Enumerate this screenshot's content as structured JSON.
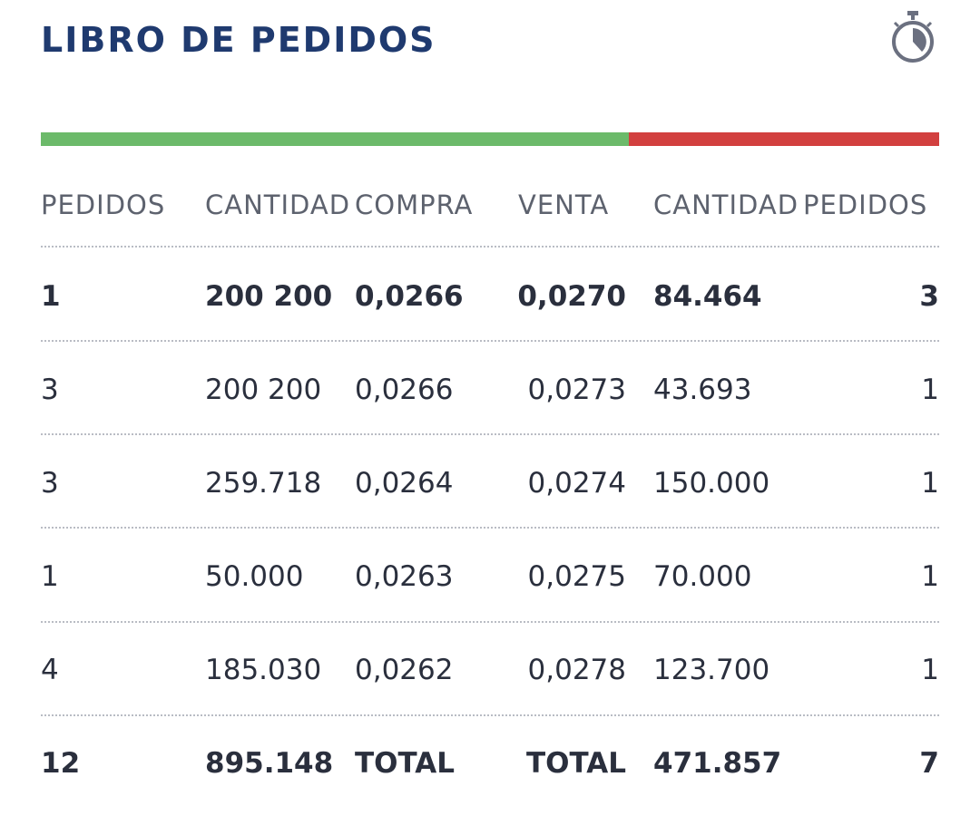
{
  "header": {
    "title": "LIBRO DE PEDIDOS"
  },
  "table": {
    "columns": [
      "PEDIDOS",
      "CANTIDAD",
      "COMPRA",
      "VENTA",
      "CANTIDAD",
      "PEDIDOS"
    ],
    "rows": [
      [
        "1",
        "200 200",
        "0,0266",
        "0,0270",
        "84.464",
        "3"
      ],
      [
        "3",
        "200 200",
        "0,0266",
        "0,0273",
        "43.693",
        "1"
      ],
      [
        "3",
        "259.718",
        "0,0264",
        "0,0274",
        "150.000",
        "1"
      ],
      [
        "1",
        "50.000",
        "0,0263",
        "0,0275",
        "70.000",
        "1"
      ],
      [
        "4",
        "185.030",
        "0,0262",
        "0,0278",
        "123.700",
        "1"
      ],
      [
        "12",
        "895.148",
        "TOTAL",
        "TOTAL",
        "471.857",
        "7"
      ]
    ]
  }
}
